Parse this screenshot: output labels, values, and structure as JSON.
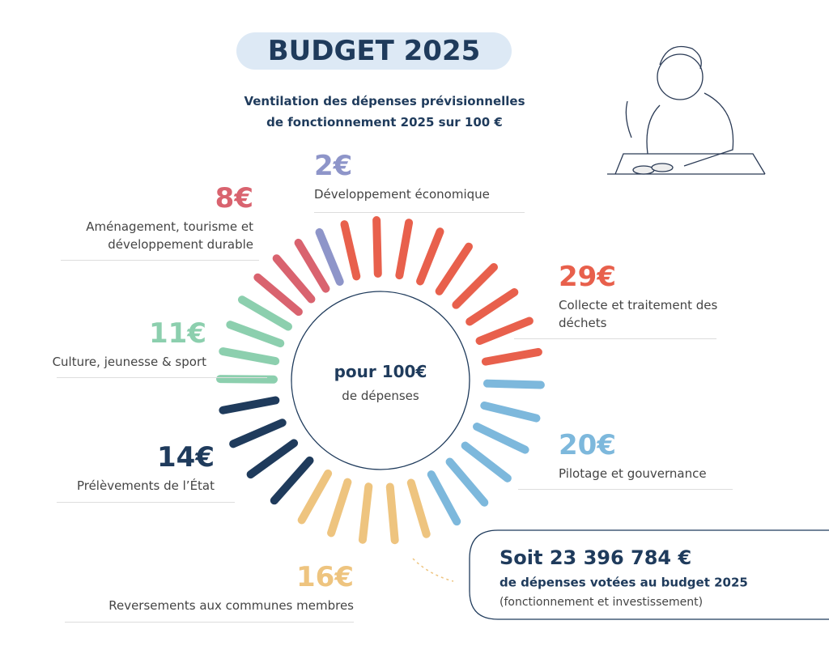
{
  "chart_data": {
    "type": "pie",
    "title": "BUDGET 2025",
    "subtitle": [
      "Ventilation des dépenses prévisionnelles",
      "de fonctionnement 2025 sur 100 €"
    ],
    "center_text": [
      "pour 100€",
      "de dépenses"
    ],
    "categories": [
      "Développement économique",
      "Collecte et traitement des déchets",
      "Pilotage et gouvernance",
      "Reversements aux communes membres",
      "Prélèvements de l’État",
      "Culture, jeunesse & sport",
      "Aménagement, tourisme et développement durable"
    ],
    "values": [
      2,
      29,
      20,
      16,
      14,
      11,
      8
    ],
    "value_labels": [
      "2€",
      "29€",
      "20€",
      "16€",
      "14€",
      "11€",
      "8€"
    ],
    "colors": [
      "#8e95c9",
      "#e8604c",
      "#7db8dc",
      "#eec47f",
      "#1f3b5c",
      "#8ccfae",
      "#d9636f"
    ],
    "annotation": [
      "Soit 23 396 784 €",
      "de dépenses votées au budget 2025",
      "(fonctionnement et investissement)"
    ]
  }
}
